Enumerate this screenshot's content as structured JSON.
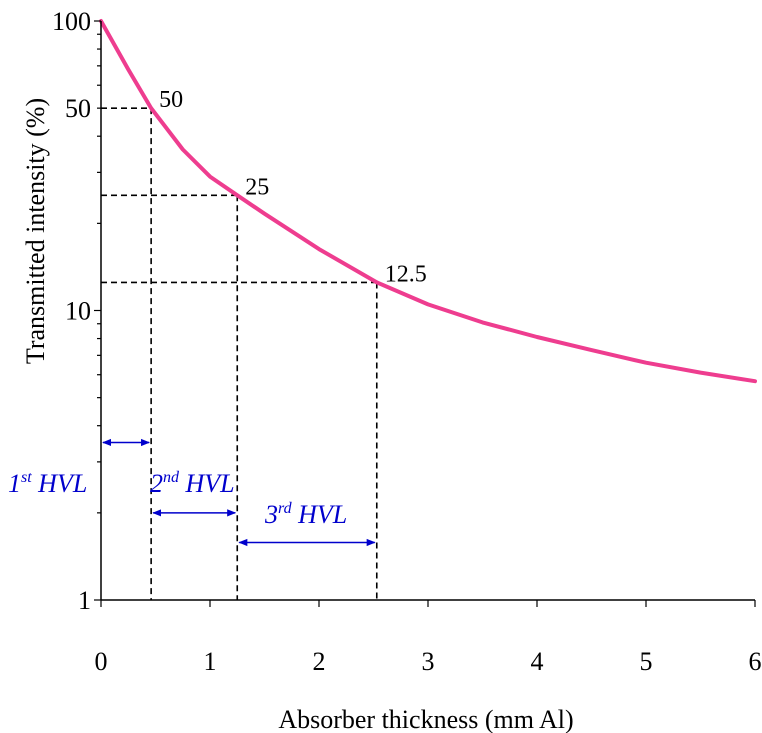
{
  "chart_data": {
    "type": "line",
    "title": "",
    "xlabel": "Absorber thickness (mm Al)",
    "ylabel": "Transmitted intensity (%)",
    "xlim": [
      0,
      6
    ],
    "ylim": [
      1,
      100
    ],
    "yscale": "log",
    "grid": false,
    "legend": "none",
    "x_ticks": [
      "0",
      "1",
      "2",
      "3",
      "4",
      "5",
      "6"
    ],
    "y_ticks": [
      "1",
      "10",
      "50",
      "100"
    ],
    "curve_color": "#ee3d8f",
    "guide_color": "#000000",
    "annotation_color": "#0000cc",
    "series": [
      {
        "x": [
          0,
          0.25,
          0.46,
          0.75,
          1.0,
          1.25,
          1.5,
          2.0,
          2.53,
          3.0,
          3.5,
          4.0,
          4.5,
          5.0,
          5.5,
          6.0
        ],
        "y": [
          100,
          68,
          50,
          36,
          29,
          25,
          21.6,
          16.3,
          12.5,
          10.5,
          9.1,
          8.1,
          7.3,
          6.6,
          6.1,
          5.7
        ]
      }
    ],
    "points": [
      {
        "x": 0.46,
        "y": 50,
        "label": "50"
      },
      {
        "x": 1.25,
        "y": 25,
        "label": "25"
      },
      {
        "x": 2.53,
        "y": 12.5,
        "label": "12.5"
      }
    ],
    "hvl": [
      {
        "ordinal": "1",
        "suffix": "st",
        "text": " HVL",
        "x_start": 0,
        "x_end": 0.46,
        "y": 3.5
      },
      {
        "ordinal": "2",
        "suffix": "nd",
        "text": " HVL",
        "x_start": 0.46,
        "x_end": 1.25,
        "y": 2.0
      },
      {
        "ordinal": "3",
        "suffix": "rd",
        "text": " HVL",
        "x_start": 1.25,
        "x_end": 2.53,
        "y": 1.58
      }
    ]
  }
}
